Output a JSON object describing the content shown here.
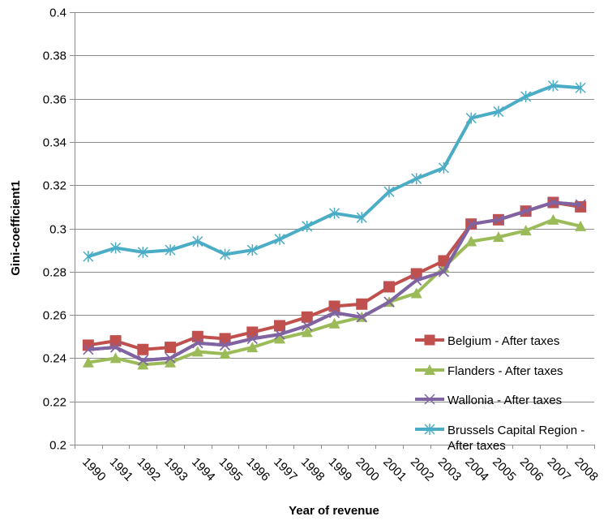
{
  "chart_data": {
    "type": "line",
    "title": "",
    "xlabel": "Year of revenue",
    "ylabel": "Gini-coefficient1",
    "ylim": [
      0.2,
      0.4
    ],
    "yticks": [
      0.2,
      0.22,
      0.24,
      0.26,
      0.28,
      0.3,
      0.32,
      0.34,
      0.36,
      0.38,
      0.4
    ],
    "ytick_labels": [
      "0.2",
      "0.22",
      "0.24",
      "0.26",
      "0.28",
      "0.3",
      "0.32",
      "0.34",
      "0.36",
      "0.38",
      "0.4"
    ],
    "grid": "horizontal",
    "legend_position": "bottom-right",
    "categories": [
      "1990",
      "1991",
      "1992",
      "1993",
      "1994",
      "1995",
      "1996",
      "1997",
      "1998",
      "1999",
      "2000",
      "2001",
      "2002",
      "2003",
      "2004",
      "2005",
      "2006",
      "2007",
      "2008"
    ],
    "series": [
      {
        "name": "Belgium - After taxes",
        "color": "#C0504D",
        "marker": "square",
        "values": [
          0.246,
          0.248,
          0.244,
          0.245,
          0.25,
          0.249,
          0.252,
          0.255,
          0.259,
          0.264,
          0.265,
          0.273,
          0.279,
          0.285,
          0.302,
          0.304,
          0.308,
          0.312,
          0.31
        ]
      },
      {
        "name": "Flanders - After taxes",
        "color": "#9BBB59",
        "marker": "triangle",
        "values": [
          0.238,
          0.24,
          0.237,
          0.238,
          0.243,
          0.242,
          0.245,
          0.249,
          0.252,
          0.256,
          0.259,
          0.266,
          0.27,
          0.282,
          0.294,
          0.296,
          0.299,
          0.304,
          0.301
        ]
      },
      {
        "name": "Wallonia - After taxes",
        "color": "#8064A2",
        "marker": "x",
        "values": [
          0.244,
          0.245,
          0.239,
          0.24,
          0.247,
          0.246,
          0.249,
          0.251,
          0.255,
          0.261,
          0.259,
          0.266,
          0.276,
          0.28,
          0.302,
          0.304,
          0.308,
          0.312,
          0.311
        ]
      },
      {
        "name": "Brussels Capital Region - After taxes",
        "legend_lines": [
          "Brussels Capital Region -",
          "After taxes"
        ],
        "color": "#4BACC6",
        "marker": "star",
        "values": [
          0.287,
          0.291,
          0.289,
          0.29,
          0.294,
          0.288,
          0.29,
          0.295,
          0.301,
          0.307,
          0.305,
          0.317,
          0.323,
          0.328,
          0.351,
          0.354,
          0.361,
          0.366,
          0.365
        ]
      }
    ]
  }
}
